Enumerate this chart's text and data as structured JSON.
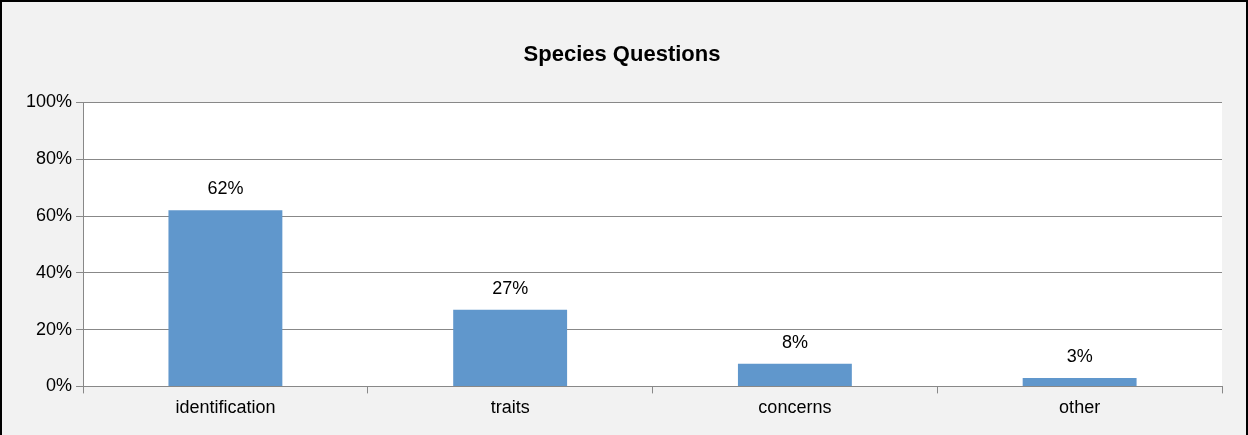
{
  "chart_data": {
    "type": "bar",
    "title": "Species Questions",
    "categories": [
      "identification",
      "traits",
      "concerns",
      "other"
    ],
    "values": [
      62,
      27,
      8,
      3
    ],
    "value_labels": [
      "62%",
      "27%",
      "8%",
      "3%"
    ],
    "color": "#6097cc",
    "ylim": [
      0,
      100
    ],
    "yticks": [
      {
        "value": 0,
        "label": "0%"
      },
      {
        "value": 20,
        "label": "20%"
      },
      {
        "value": 40,
        "label": "40%"
      },
      {
        "value": 60,
        "label": "60%"
      },
      {
        "value": 80,
        "label": "80%"
      },
      {
        "value": 100,
        "label": "100%"
      }
    ],
    "grid": "y",
    "legend": false
  }
}
